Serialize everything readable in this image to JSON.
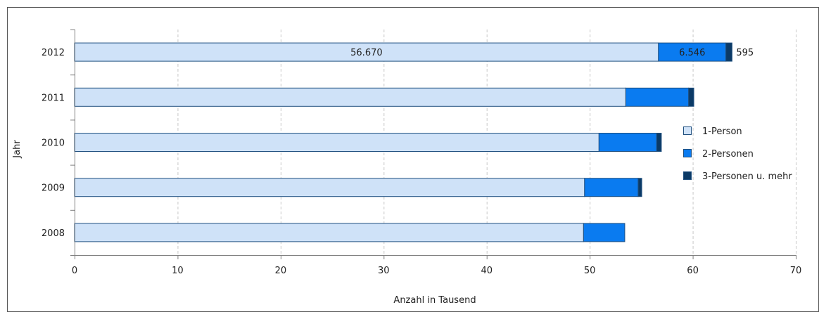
{
  "chart_data": {
    "type": "bar",
    "orientation": "horizontal",
    "stacked": true,
    "categories": [
      "2012",
      "2011",
      "2010",
      "2009",
      "2008"
    ],
    "series": [
      {
        "name": "1-Person",
        "color": "#cfe2f8",
        "values": [
          56.67,
          53.5,
          50.9,
          49.5,
          49.4
        ]
      },
      {
        "name": "2-Personen",
        "color": "#0a7bf0",
        "values": [
          6.546,
          6.1,
          5.6,
          5.2,
          4.0
        ]
      },
      {
        "name": "3-Personen u. mehr",
        "color": "#0b3a66",
        "values": [
          0.595,
          0.5,
          0.45,
          0.35,
          0.0
        ]
      }
    ],
    "data_labels": {
      "2012": [
        "56.670",
        "6.546",
        "595"
      ]
    },
    "xlabel": "Anzahl in Tausend",
    "ylabel": "Jahr",
    "xlim": [
      0,
      70
    ],
    "xticks": [
      0,
      10,
      20,
      30,
      40,
      50,
      60,
      70
    ],
    "grid": true,
    "legend_position": "right"
  }
}
